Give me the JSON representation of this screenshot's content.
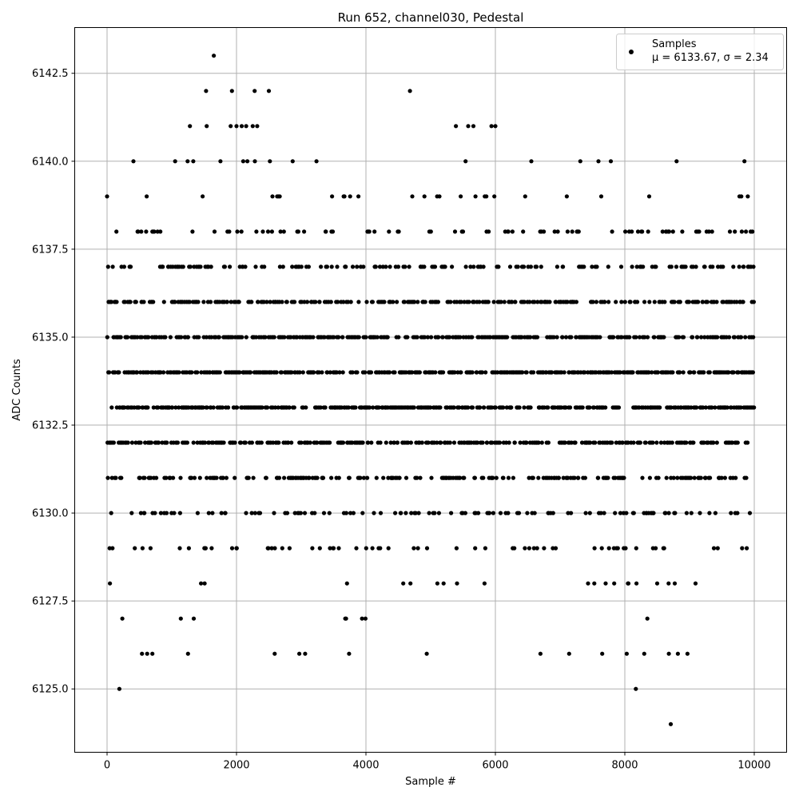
{
  "chart_data": {
    "type": "scatter",
    "title": "Run 652, channel030, Pedestal",
    "xlabel": "Sample #",
    "ylabel": "ADC Counts",
    "xlim": [
      -500,
      10500
    ],
    "ylim": [
      6123.2,
      6143.8
    ],
    "xticks": [
      0,
      2000,
      4000,
      6000,
      8000,
      10000
    ],
    "xtick_labels": [
      "0",
      "2000",
      "4000",
      "6000",
      "8000",
      "10000"
    ],
    "yticks": [
      6125.0,
      6127.5,
      6130.0,
      6132.5,
      6135.0,
      6137.5,
      6140.0,
      6142.5
    ],
    "ytick_labels": [
      "6125.0",
      "6127.5",
      "6130.0",
      "6132.5",
      "6135.0",
      "6137.5",
      "6140.0",
      "6142.5"
    ],
    "grid": true,
    "legend": {
      "placement": "top-right",
      "entries": [
        {
          "name": "Samples",
          "stats_text": "μ = 6133.67, σ = 2.34"
        }
      ]
    },
    "marker_color": "#000000",
    "n_samples": 10000,
    "series": [
      {
        "name": "Samples",
        "mean": 6133.67,
        "std": 2.34,
        "value_levels": [
          6124,
          6125,
          6126,
          6127,
          6128,
          6129,
          6130,
          6131,
          6132,
          6133,
          6134,
          6135,
          6136,
          6137,
          6138,
          6139,
          6140,
          6141,
          6142,
          6143
        ],
        "outlier_points": [
          {
            "x": 1650,
            "y": 6143
          },
          {
            "x": 1530,
            "y": 6142
          },
          {
            "x": 1930,
            "y": 6142
          },
          {
            "x": 2280,
            "y": 6142
          },
          {
            "x": 2500,
            "y": 6142
          },
          {
            "x": 4680,
            "y": 6142
          },
          {
            "x": 1280,
            "y": 6141
          },
          {
            "x": 1540,
            "y": 6141
          },
          {
            "x": 1910,
            "y": 6141
          },
          {
            "x": 2000,
            "y": 6141
          },
          {
            "x": 2080,
            "y": 6141
          },
          {
            "x": 2150,
            "y": 6141
          },
          {
            "x": 2250,
            "y": 6141
          },
          {
            "x": 2320,
            "y": 6141
          },
          {
            "x": 5390,
            "y": 6141
          },
          {
            "x": 5580,
            "y": 6141
          },
          {
            "x": 5660,
            "y": 6141
          },
          {
            "x": 5940,
            "y": 6141
          },
          {
            "x": 6000,
            "y": 6141
          },
          {
            "x": 190,
            "y": 6125
          },
          {
            "x": 8170,
            "y": 6125
          },
          {
            "x": 8710,
            "y": 6124
          },
          {
            "x": 540,
            "y": 6126
          },
          {
            "x": 620,
            "y": 6126
          },
          {
            "x": 700,
            "y": 6126
          },
          {
            "x": 1250,
            "y": 6126
          },
          {
            "x": 2590,
            "y": 6126
          },
          {
            "x": 2970,
            "y": 6126
          },
          {
            "x": 3060,
            "y": 6126
          },
          {
            "x": 7140,
            "y": 6126
          },
          {
            "x": 7650,
            "y": 6126
          },
          {
            "x": 8030,
            "y": 6126
          },
          {
            "x": 8300,
            "y": 6126
          },
          {
            "x": 8680,
            "y": 6126
          },
          {
            "x": 8820,
            "y": 6126
          }
        ]
      }
    ]
  }
}
